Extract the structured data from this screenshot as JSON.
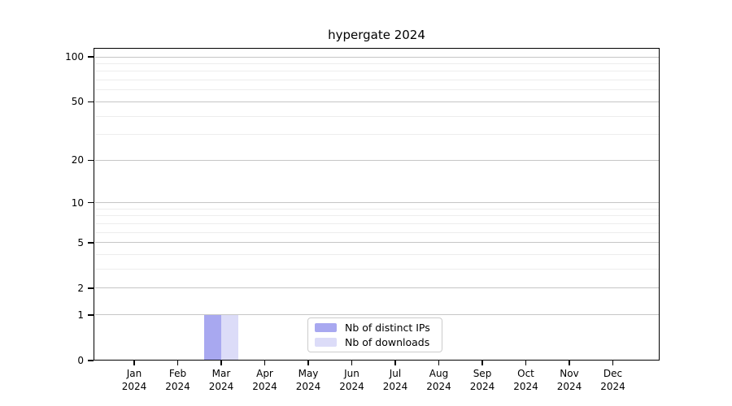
{
  "chart_data": {
    "type": "bar",
    "title": "hypergate 2024",
    "x_labels": [
      {
        "line1": "Jan",
        "line2": "2024"
      },
      {
        "line1": "Feb",
        "line2": "2024"
      },
      {
        "line1": "Mar",
        "line2": "2024"
      },
      {
        "line1": "Apr",
        "line2": "2024"
      },
      {
        "line1": "May",
        "line2": "2024"
      },
      {
        "line1": "Jun",
        "line2": "2024"
      },
      {
        "line1": "Jul",
        "line2": "2024"
      },
      {
        "line1": "Aug",
        "line2": "2024"
      },
      {
        "line1": "Sep",
        "line2": "2024"
      },
      {
        "line1": "Oct",
        "line2": "2024"
      },
      {
        "line1": "Nov",
        "line2": "2024"
      },
      {
        "line1": "Dec",
        "line2": "2024"
      }
    ],
    "y_scale": "log1p",
    "y_ticks": [
      0,
      1,
      2,
      5,
      10,
      20,
      50,
      100
    ],
    "y_minor_gridlines": [
      3,
      4,
      6,
      7,
      8,
      9,
      30,
      40,
      60,
      70,
      80,
      90
    ],
    "grid": true,
    "legend_position": "bottom-center",
    "series": [
      {
        "name": "Nb of distinct IPs",
        "color": "#a8a8f0",
        "values": [
          0,
          0,
          1,
          0,
          0,
          0,
          0,
          0,
          0,
          0,
          0,
          0
        ]
      },
      {
        "name": "Nb of downloads",
        "color": "#dcdcf8",
        "values": [
          0,
          0,
          1,
          0,
          0,
          0,
          0,
          0,
          0,
          0,
          0,
          0
        ]
      }
    ]
  }
}
